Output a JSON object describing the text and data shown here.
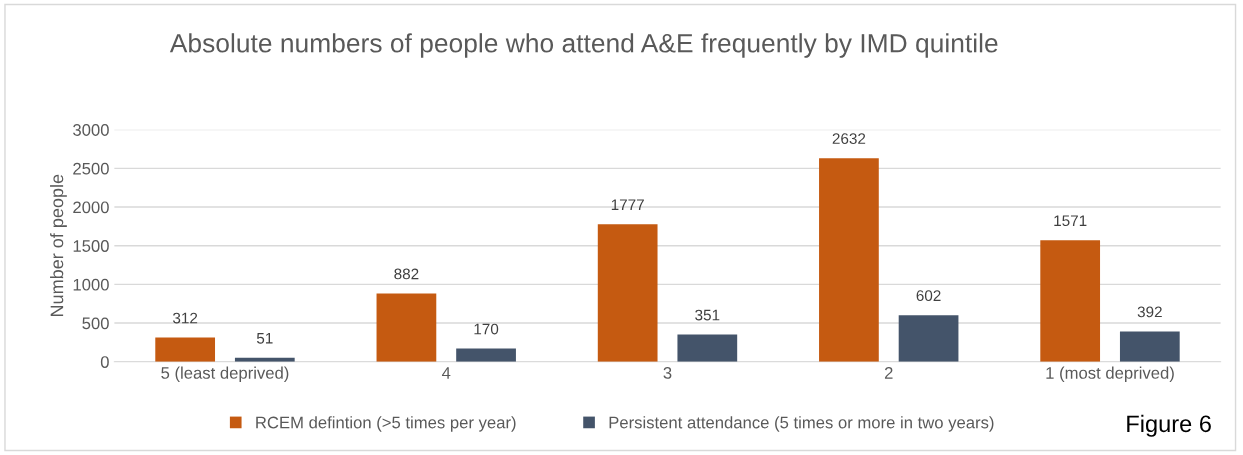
{
  "chart_data": {
    "type": "bar",
    "title": "Absolute numbers of people who attend A&E frequently by IMD quintile",
    "ylabel": "Number of people",
    "categories": [
      "5 (least deprived)",
      "4",
      "3",
      "2",
      "1 (most deprived)"
    ],
    "series": [
      {
        "name": "RCEM defintion (>5 times per year)",
        "color": "#c55a11",
        "values": [
          312,
          882,
          1777,
          2632,
          1571
        ]
      },
      {
        "name": "Persistent attendance (5 times or more in two years)",
        "color": "#44546a",
        "values": [
          51,
          170,
          351,
          602,
          392
        ]
      }
    ],
    "ylim": [
      0,
      3000
    ],
    "yticks": [
      0,
      500,
      1000,
      1500,
      2000,
      2500,
      3000
    ],
    "grid": "y",
    "legend": "bottom",
    "data_labels": true,
    "annotations": [
      "Figure 6"
    ]
  }
}
